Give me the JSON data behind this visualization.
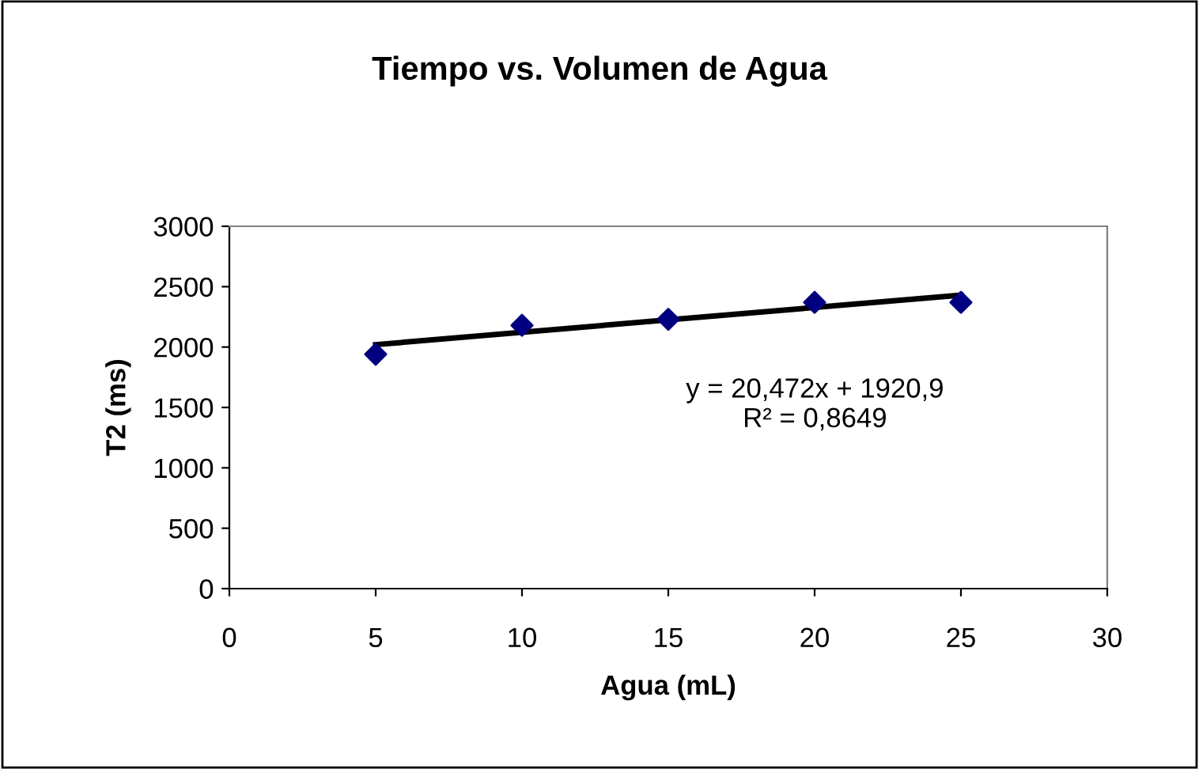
{
  "chart_data": {
    "type": "scatter",
    "title": "Tiempo vs. Volumen de Agua",
    "xlabel": "Agua (mL)",
    "ylabel": "T2 (ms)",
    "x": [
      5,
      10,
      15,
      20,
      25
    ],
    "series": [
      {
        "color": "#000080",
        "marker": "diamond",
        "values": [
          1940,
          2180,
          2230,
          2370,
          2370
        ]
      },
      {
        "type": "line",
        "color": "#000000",
        "marker": "none",
        "x": [
          5,
          25
        ],
        "values": [
          2020,
          2430
        ]
      }
    ],
    "annotations": [
      "y = 20,472x + 1920,9\nR² = 0,8649"
    ],
    "xlim": [
      0,
      30
    ],
    "xticks": [
      0,
      5,
      10,
      15,
      20,
      25,
      30
    ],
    "ylim": [
      0,
      3000
    ],
    "yticks": [
      0,
      500,
      1000,
      1500,
      2000,
      2500,
      3000
    ],
    "grid": false,
    "legend": false
  }
}
